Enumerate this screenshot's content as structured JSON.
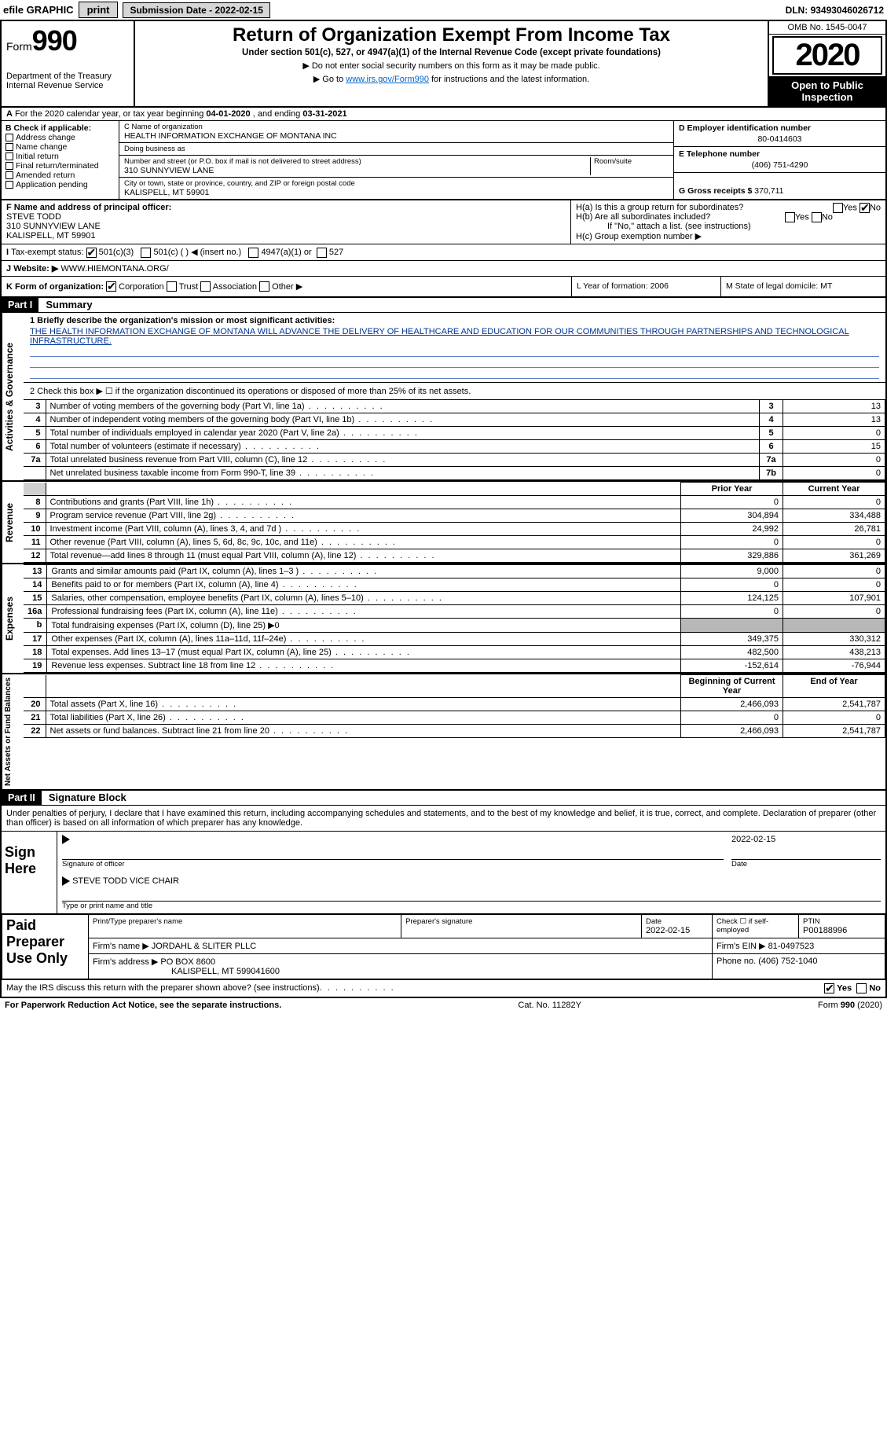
{
  "topstrip": {
    "efile": "efile GRAPHIC",
    "print": "print",
    "subdate_label": "Submission Date - ",
    "subdate": "2022-02-15",
    "dln_label": "DLN: ",
    "dln": "93493046026712"
  },
  "header": {
    "form_prefix": "Form",
    "form_no": "990",
    "title": "Return of Organization Exempt From Income Tax",
    "subtitle": "Under section 501(c), 527, or 4947(a)(1) of the Internal Revenue Code (except private foundations)",
    "note1": "▶ Do not enter social security numbers on this form as it may be made public.",
    "note2_pre": "▶ Go to ",
    "note2_link": "www.irs.gov/Form990",
    "note2_post": " for instructions and the latest information.",
    "dept1": "Department of the Treasury",
    "dept2": "Internal Revenue Service",
    "omb": "OMB No. 1545-0047",
    "year": "2020",
    "open": "Open to Public Inspection"
  },
  "rowA": {
    "text_pre": "For the 2020 calendar year, or tax year beginning ",
    "begin": "04-01-2020",
    "mid": " , and ending ",
    "end": "03-31-2021"
  },
  "B": {
    "label": "B Check if applicable:",
    "items": [
      "Address change",
      "Name change",
      "Initial return",
      "Final return/terminated",
      "Amended return",
      "Application pending"
    ]
  },
  "C": {
    "name_lab": "C Name of organization",
    "name": "HEALTH INFORMATION EXCHANGE OF MONTANA INC",
    "dba_lab": "Doing business as",
    "dba": "",
    "street_lab": "Number and street (or P.O. box if mail is not delivered to street address)",
    "street": "310 SUNNYVIEW LANE",
    "room_lab": "Room/suite",
    "city_lab": "City or town, state or province, country, and ZIP or foreign postal code",
    "city": "KALISPELL, MT  59901"
  },
  "D": {
    "ein_lab": "D Employer identification number",
    "ein": "80-0414603",
    "tel_lab": "E Telephone number",
    "tel": "(406) 751-4290",
    "gross_lab": "G Gross receipts $ ",
    "gross": "370,711"
  },
  "F": {
    "lab": "F Name and address of principal officer:",
    "name": "STEVE TODD",
    "street": "310 SUNNYVIEW LANE",
    "city": "KALISPELL, MT  59901"
  },
  "H": {
    "a": "H(a)  Is this a group return for subordinates?",
    "b": "H(b)  Are all subordinates included?",
    "b_note": "If \"No,\" attach a list. (see instructions)",
    "c": "H(c)  Group exemption number ▶"
  },
  "I": {
    "lab": "Tax-exempt status:",
    "opts": [
      "501(c)(3)",
      "501(c) (   ) ◀ (insert no.)",
      "4947(a)(1) or",
      "527"
    ]
  },
  "J": {
    "lab": "Website: ▶",
    "val": " WWW.HIEMONTANA.ORG/"
  },
  "K": {
    "lab": "K Form of organization:",
    "opts": [
      "Corporation",
      "Trust",
      "Association",
      "Other ▶"
    ],
    "L": "L Year of formation: 2006",
    "M": "M State of legal domicile: MT"
  },
  "part1": {
    "hdr": "Part I",
    "title": "Summary",
    "line1_lab": "1  Briefly describe the organization's mission or most significant activities:",
    "mission": "THE HEALTH INFORMATION EXCHANGE OF MONTANA WILL ADVANCE THE DELIVERY OF HEALTHCARE AND EDUCATION FOR OUR COMMUNITIES THROUGH PARTNERSHIPS AND TECHNOLOGICAL INFRASTRUCTURE.",
    "line2": "2   Check this box ▶ ☐  if the organization discontinued its operations or disposed of more than 25% of its net assets.",
    "gov_rows": [
      {
        "n": "3",
        "t": "Number of voting members of the governing body (Part VI, line 1a)",
        "rn": "3",
        "v": "13"
      },
      {
        "n": "4",
        "t": "Number of independent voting members of the governing body (Part VI, line 1b)",
        "rn": "4",
        "v": "13"
      },
      {
        "n": "5",
        "t": "Total number of individuals employed in calendar year 2020 (Part V, line 2a)",
        "rn": "5",
        "v": "0"
      },
      {
        "n": "6",
        "t": "Total number of volunteers (estimate if necessary)",
        "rn": "6",
        "v": "15"
      },
      {
        "n": "7a",
        "t": "Total unrelated business revenue from Part VIII, column (C), line 12",
        "rn": "7a",
        "v": "0"
      },
      {
        "n": "",
        "t": "Net unrelated business taxable income from Form 990-T, line 39",
        "rn": "7b",
        "v": "0"
      }
    ],
    "col_py": "Prior Year",
    "col_cy": "Current Year",
    "rev_rows": [
      {
        "n": "8",
        "t": "Contributions and grants (Part VIII, line 1h)",
        "py": "0",
        "cy": "0"
      },
      {
        "n": "9",
        "t": "Program service revenue (Part VIII, line 2g)",
        "py": "304,894",
        "cy": "334,488"
      },
      {
        "n": "10",
        "t": "Investment income (Part VIII, column (A), lines 3, 4, and 7d )",
        "py": "24,992",
        "cy": "26,781"
      },
      {
        "n": "11",
        "t": "Other revenue (Part VIII, column (A), lines 5, 6d, 8c, 9c, 10c, and 11e)",
        "py": "0",
        "cy": "0"
      },
      {
        "n": "12",
        "t": "Total revenue—add lines 8 through 11 (must equal Part VIII, column (A), line 12)",
        "py": "329,886",
        "cy": "361,269"
      }
    ],
    "exp_rows": [
      {
        "n": "13",
        "t": "Grants and similar amounts paid (Part IX, column (A), lines 1–3 )",
        "py": "9,000",
        "cy": "0"
      },
      {
        "n": "14",
        "t": "Benefits paid to or for members (Part IX, column (A), line 4)",
        "py": "0",
        "cy": "0"
      },
      {
        "n": "15",
        "t": "Salaries, other compensation, employee benefits (Part IX, column (A), lines 5–10)",
        "py": "124,125",
        "cy": "107,901"
      },
      {
        "n": "16a",
        "t": "Professional fundraising fees (Part IX, column (A), line 11e)",
        "py": "0",
        "cy": "0"
      },
      {
        "n": "b",
        "t": "Total fundraising expenses (Part IX, column (D), line 25) ▶0",
        "py": "",
        "cy": "",
        "shade": true
      },
      {
        "n": "17",
        "t": "Other expenses (Part IX, column (A), lines 11a–11d, 11f–24e)",
        "py": "349,375",
        "cy": "330,312"
      },
      {
        "n": "18",
        "t": "Total expenses. Add lines 13–17 (must equal Part IX, column (A), line 25)",
        "py": "482,500",
        "cy": "438,213"
      },
      {
        "n": "19",
        "t": "Revenue less expenses. Subtract line 18 from line 12",
        "py": "-152,614",
        "cy": "-76,944"
      }
    ],
    "col_boy": "Beginning of Current Year",
    "col_eoy": "End of Year",
    "net_rows": [
      {
        "n": "20",
        "t": "Total assets (Part X, line 16)",
        "py": "2,466,093",
        "cy": "2,541,787"
      },
      {
        "n": "21",
        "t": "Total liabilities (Part X, line 26)",
        "py": "0",
        "cy": "0"
      },
      {
        "n": "22",
        "t": "Net assets or fund balances. Subtract line 21 from line 20",
        "py": "2,466,093",
        "cy": "2,541,787"
      }
    ],
    "side_gov": "Activities & Governance",
    "side_rev": "Revenue",
    "side_exp": "Expenses",
    "side_net": "Net Assets or Fund Balances"
  },
  "part2": {
    "hdr": "Part II",
    "title": "Signature Block",
    "decl": "Under penalties of perjury, I declare that I have examined this return, including accompanying schedules and statements, and to the best of my knowledge and belief, it is true, correct, and complete. Declaration of preparer (other than officer) is based on all information of which preparer has any knowledge.",
    "sign_here": "Sign Here",
    "sig_officer_lab": "Signature of officer",
    "sig_date": "2022-02-15",
    "sig_date_lab": "Date",
    "officer_name": "STEVE TODD  VICE CHAIR",
    "officer_name_lab": "Type or print name and title",
    "paid_lab": "Paid Preparer Use Only",
    "prep": {
      "c1": "Print/Type preparer's name",
      "c2": "Preparer's signature",
      "c3_lab": "Date",
      "c3": "2022-02-15",
      "c4_lab": "Check ☐ if self-employed",
      "c5_lab": "PTIN",
      "c5": "P00188996",
      "firm_lab": "Firm's name    ▶ ",
      "firm": "JORDAHL & SLITER PLLC",
      "ein_lab": "Firm's EIN ▶ ",
      "ein": "81-0497523",
      "addr_lab": "Firm's address ▶ ",
      "addr1": "PO BOX 8600",
      "addr2": "KALISPELL, MT  599041600",
      "phone_lab": "Phone no. ",
      "phone": "(406) 752-1040"
    },
    "discuss": "May the IRS discuss this return with the preparer shown above? (see instructions)"
  },
  "footer": {
    "l": "For Paperwork Reduction Act Notice, see the separate instructions.",
    "c": "Cat. No. 11282Y",
    "r": "Form 990 (2020)"
  }
}
